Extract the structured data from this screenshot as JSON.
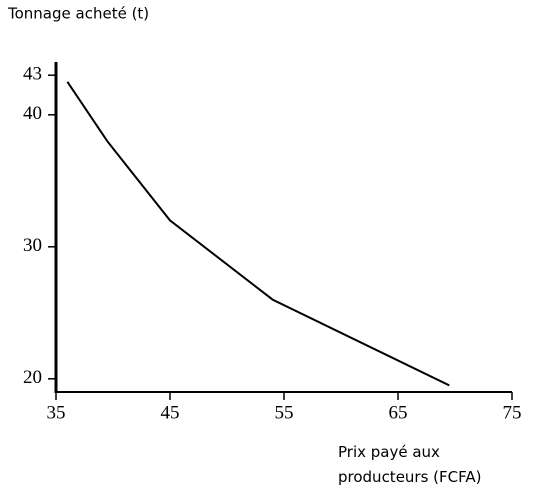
{
  "chart_data": {
    "type": "line",
    "y_label": "Tonnage acheté (t)",
    "x_label": "Prix payé aux producteurs (FCFA)",
    "x": [
      36,
      39.5,
      45,
      54,
      69.5
    ],
    "values": [
      42.5,
      38,
      32,
      26,
      19.5
    ],
    "color": "#000000",
    "xlim": [
      35,
      75
    ],
    "xticks": [
      35,
      45,
      55,
      65,
      75
    ],
    "ylim": [
      19,
      44
    ],
    "yticks": [
      20,
      30,
      40,
      43
    ]
  }
}
